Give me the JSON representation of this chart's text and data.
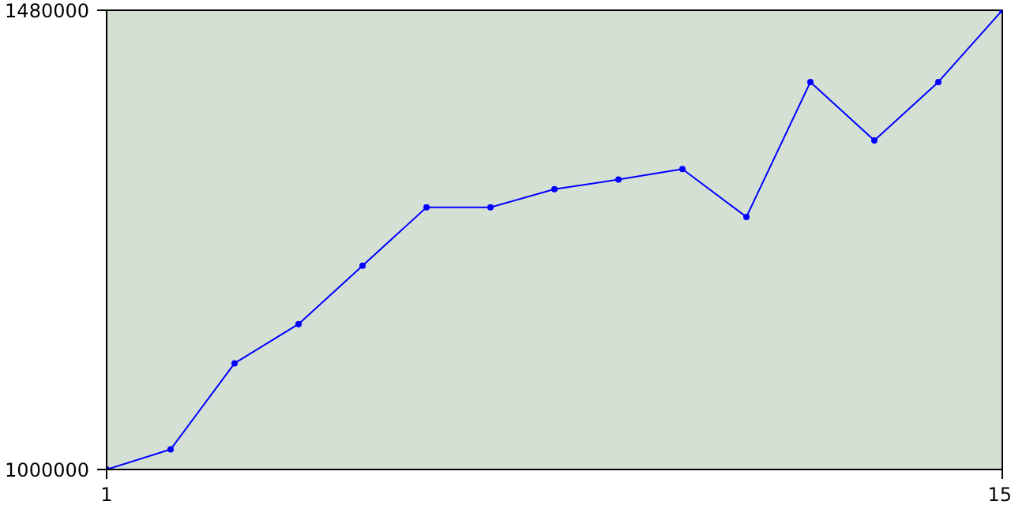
{
  "chart_data": {
    "type": "line",
    "x": [
      1,
      2,
      3,
      4,
      5,
      6,
      7,
      8,
      9,
      10,
      11,
      12,
      13,
      14,
      15
    ],
    "series": [
      {
        "color": "#0000ff",
        "values": [
          1000000,
          1021000,
          1111000,
          1152000,
          1213000,
          1274000,
          1274000,
          1293000,
          1303000,
          1314000,
          1264000,
          1405000,
          1344000,
          1405000,
          1480000
        ]
      }
    ],
    "xlim": [
      1,
      15
    ],
    "ylim": [
      1000000,
      1480000
    ],
    "xticks": [
      1,
      15
    ],
    "yticks": [
      1000000,
      1480000
    ],
    "marker": "circle",
    "line_style": "solid"
  }
}
